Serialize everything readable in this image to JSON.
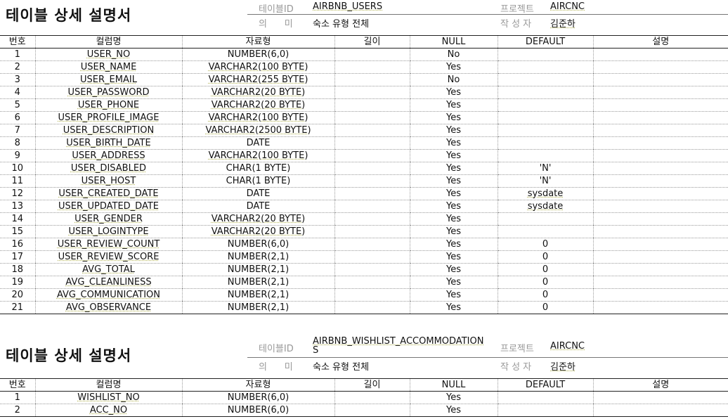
{
  "doc1": {
    "title": "테이블 상세 설명서",
    "meta": {
      "table_id_label": "테이블ID",
      "table_id": "AIRBNB_USERS",
      "project_label": "프로젝트",
      "project": "AIRCNC",
      "meaning_label": "의      미",
      "meaning": "숙소 유형 전체",
      "author_label": "작 성 자",
      "author": "김준하"
    },
    "columns": [
      "번호",
      "컬럼명",
      "자료형",
      "길이",
      "NULL",
      "DEFAULT",
      "설명"
    ],
    "rows": [
      [
        "1",
        "USER_NO",
        "NUMBER(6,0)",
        "",
        "No",
        "",
        ""
      ],
      [
        "2",
        "USER_NAME",
        "VARCHAR2(100  BYTE)",
        "",
        "Yes",
        "",
        ""
      ],
      [
        "3",
        "USER_EMAIL",
        "VARCHAR2(255  BYTE)",
        "",
        "No",
        "",
        ""
      ],
      [
        "4",
        "USER_PASSWORD",
        "VARCHAR2(20  BYTE)",
        "",
        "Yes",
        "",
        ""
      ],
      [
        "5",
        "USER_PHONE",
        "VARCHAR2(20  BYTE)",
        "",
        "Yes",
        "",
        ""
      ],
      [
        "6",
        "USER_PROFILE_IMAGE",
        "VARCHAR2(100  BYTE)",
        "",
        "Yes",
        "",
        ""
      ],
      [
        "7",
        "USER_DESCRIPTION",
        "VARCHAR2(2500  BYTE)",
        "",
        "Yes",
        "",
        ""
      ],
      [
        "8",
        "USER_BIRTH_DATE",
        "DATE",
        "",
        "Yes",
        "",
        ""
      ],
      [
        "9",
        "USER_ADDRESS",
        "VARCHAR2(100  BYTE)",
        "",
        "Yes",
        "",
        ""
      ],
      [
        "10",
        "USER_DISABLED",
        "CHAR(1  BYTE)",
        "",
        "Yes",
        "'N'",
        ""
      ],
      [
        "11",
        "USER_HOST",
        "CHAR(1  BYTE)",
        "",
        "Yes",
        "'N'",
        ""
      ],
      [
        "12",
        "USER_CREATED_DATE",
        "DATE",
        "",
        "Yes",
        "sysdate",
        ""
      ],
      [
        "13",
        "USER_UPDATED_DATE",
        "DATE",
        "",
        "Yes",
        "sysdate",
        ""
      ],
      [
        "14",
        "USER_GENDER",
        "VARCHAR2(20  BYTE)",
        "",
        "Yes",
        "",
        ""
      ],
      [
        "15",
        "USER_LOGINTYPE",
        "VARCHAR2(20  BYTE)",
        "",
        "Yes",
        "",
        ""
      ],
      [
        "16",
        "USER_REVIEW_COUNT",
        "NUMBER(6,0)",
        "",
        "Yes",
        "0",
        ""
      ],
      [
        "17",
        "USER_REVIEW_SCORE",
        "NUMBER(2,1)",
        "",
        "Yes",
        "0",
        ""
      ],
      [
        "18",
        "AVG_TOTAL",
        "NUMBER(2,1)",
        "",
        "Yes",
        "0",
        ""
      ],
      [
        "19",
        "AVG_CLEANLINESS",
        "NUMBER(2,1)",
        "",
        "Yes",
        "0",
        ""
      ],
      [
        "20",
        "AVG_COMMUNICATION",
        "NUMBER(2,1)",
        "",
        "Yes",
        "0",
        ""
      ],
      [
        "21",
        "AVG_OBSERVANCE",
        "NUMBER(2,1)",
        "",
        "Yes",
        "0",
        ""
      ]
    ]
  },
  "doc2": {
    "title": "테이블 상세 설명서",
    "meta": {
      "table_id_label": "테이블ID",
      "table_id_line1": "AIRBNB_WISHLIST_ACCOMMODATION",
      "table_id_line2": "S",
      "project_label": "프로젝트",
      "project": "AIRCNC",
      "meaning_label": "의      미",
      "meaning": "숙소 유형 전체",
      "author_label": "작 성 자",
      "author": "김준하"
    },
    "columns": [
      "번호",
      "컬럼명",
      "자료형",
      "길이",
      "NULL",
      "DEFAULT",
      "설명"
    ],
    "rows": [
      [
        "1",
        "WISHLIST_NO",
        "NUMBER(6,0)",
        "",
        "Yes",
        "",
        ""
      ],
      [
        "2",
        "ACC_NO",
        "NUMBER(6,0)",
        "",
        "Yes",
        "",
        ""
      ]
    ]
  }
}
